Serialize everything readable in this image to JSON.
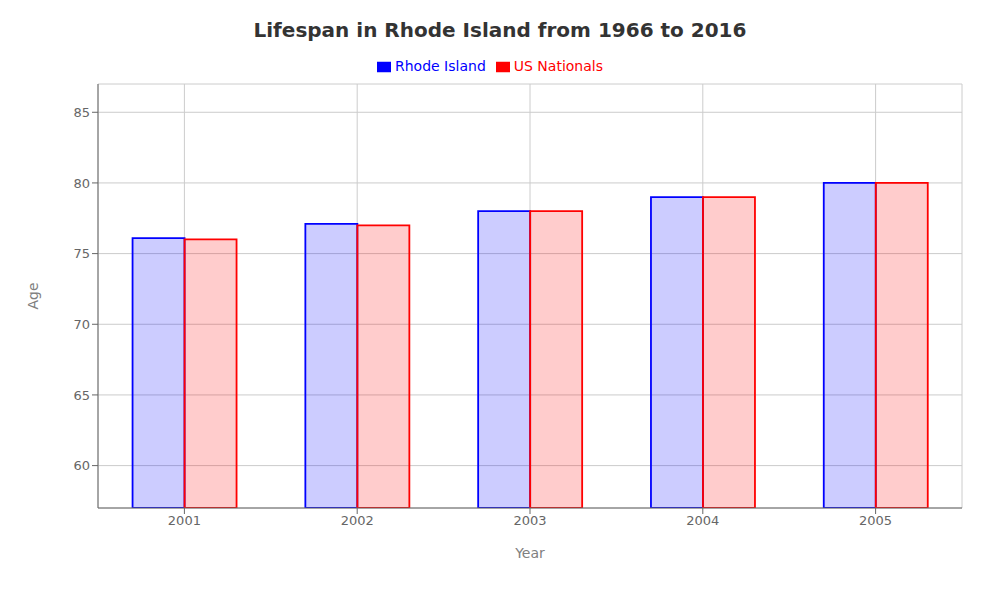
{
  "chart_data": {
    "type": "bar",
    "title": "Lifespan in Rhode Island from 1966 to 2016",
    "xlabel": "Year",
    "ylabel": "Age",
    "categories": [
      "2001",
      "2002",
      "2003",
      "2004",
      "2005"
    ],
    "series": [
      {
        "name": "Rhode Island",
        "color": "#0000ff",
        "values": [
          76.1,
          77.1,
          78.0,
          79.0,
          80.0
        ]
      },
      {
        "name": "US Nationals",
        "color": "#ff0000",
        "values": [
          76.0,
          77.0,
          78.0,
          79.0,
          80.0
        ]
      }
    ],
    "ylim": [
      57,
      87
    ],
    "yticks": [
      60,
      65,
      70,
      75,
      80,
      85
    ],
    "grid": true,
    "legend": "top"
  }
}
